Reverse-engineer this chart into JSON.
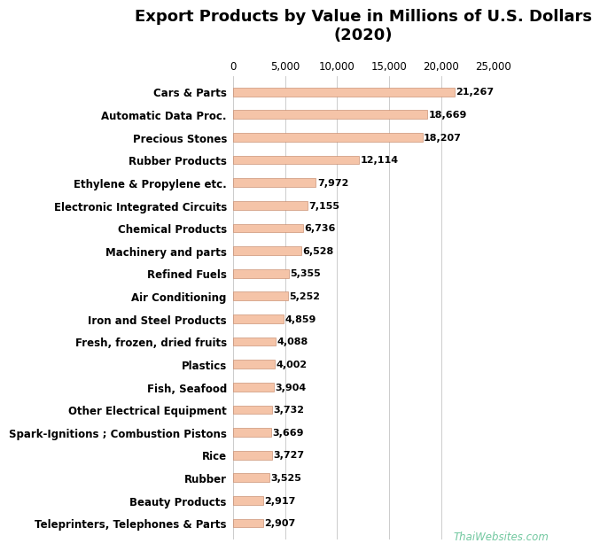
{
  "title": "Export Products by Value in Millions of U.S. Dollars\n(2020)",
  "categories": [
    "Cars & Parts",
    "Automatic Data Proc.",
    "Precious Stones",
    "Rubber Products",
    "Ethylene & Propylene etc.",
    "Electronic Integrated Circuits",
    "Chemical Products",
    "Machinery and parts",
    "Refined Fuels",
    "Air Conditioning",
    "Iron and Steel Products",
    "Fresh, frozen, dried fruits",
    "Plastics",
    "Fish, Seafood",
    "Other Electrical Equipment",
    "Spark-Ignitions ; Combustion Pistons",
    "Rice",
    "Rubber",
    "Beauty Products",
    "Teleprinters, Telephones & Parts"
  ],
  "values": [
    21267,
    18669,
    18207,
    12114,
    7972,
    7155,
    6736,
    6528,
    5355,
    5252,
    4859,
    4088,
    4002,
    3904,
    3732,
    3669,
    3727,
    3525,
    2917,
    2907
  ],
  "bar_color": "#f5c4a8",
  "bar_edge_color": "#c08060",
  "label_color": "#000000",
  "watermark_color": "#72c8a0",
  "watermark_text": "ThaiWebsites.com",
  "background_color": "#ffffff",
  "grid_color": "#cccccc",
  "xlim": [
    0,
    25000
  ],
  "xticks": [
    0,
    5000,
    10000,
    15000,
    20000,
    25000
  ],
  "title_fontsize": 13,
  "label_fontsize": 8.5,
  "value_fontsize": 8.0
}
